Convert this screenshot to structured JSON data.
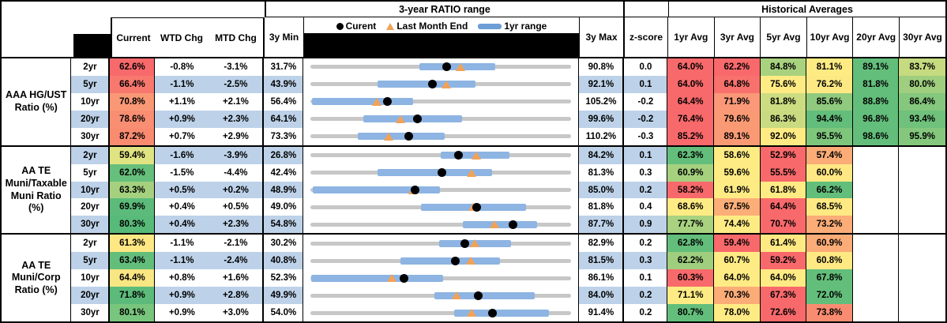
{
  "header": {
    "range_title": "3-year RATIO range",
    "hist_title": "Historical Averages",
    "cols": {
      "current": "Current",
      "wtd": "WTD Chg",
      "mtd": "MTD Chg",
      "min": "3y Min",
      "max": "3y Max",
      "z": "z-score"
    },
    "avg_cols": [
      "1yr Avg",
      "3yr Avg",
      "5yr Avg",
      "10yr Avg",
      "20yr Avg",
      "30yr Avg"
    ],
    "legend": {
      "current": "Curent",
      "last_month": "Last Month End",
      "range": "1yr range"
    }
  },
  "colors": {
    "stripe": "#BDD2E9",
    "bar": "#8DB4E2",
    "track": "#C7C7C7",
    "marker_orange": "#F2A257",
    "heat_red": "#F8696B",
    "heat_yellow": "#FFEB84",
    "heat_green": "#63BE7B"
  },
  "chart_data": {
    "type": "table",
    "note": "range = 3y min/max scale; lo/hi = 1yr range bar; cur = current; lme = last month end",
    "sections": [
      {
        "label": "AAA HG/UST Ratio (%)",
        "rows": [
          {
            "tenor": "2yr",
            "current": "62.6%",
            "current_bg": "#F8696B",
            "wtd": "-0.8%",
            "mtd": "-3.1%",
            "min3y": "31.7%",
            "max3y": "90.8%",
            "z": "0.0",
            "range": {
              "min": 31.7,
              "max": 90.8,
              "lo": 56.3,
              "hi": 73.6,
              "cur": 62.6,
              "lme": 65.7
            },
            "avgs": [
              {
                "v": "64.0%",
                "bg": "#F8696B"
              },
              {
                "v": "62.2%",
                "bg": "#F8696B"
              },
              {
                "v": "84.8%",
                "bg": "#A9D27F"
              },
              {
                "v": "81.1%",
                "bg": "#FFEB84"
              },
              {
                "v": "89.1%",
                "bg": "#63BE7B"
              },
              {
                "v": "83.7%",
                "bg": "#C6DA80"
              }
            ]
          },
          {
            "tenor": "5yr",
            "current": "66.4%",
            "current_bg": "#F8786E",
            "wtd": "-1.1%",
            "mtd": "-2.5%",
            "min3y": "43.9%",
            "max3y": "92.1%",
            "z": "0.1",
            "range": {
              "min": 43.9,
              "max": 92.1,
              "lo": 56.3,
              "hi": 74.3,
              "cur": 66.4,
              "lme": 68.9
            },
            "avgs": [
              {
                "v": "64.0%",
                "bg": "#F8696B"
              },
              {
                "v": "64.8%",
                "bg": "#F8716C"
              },
              {
                "v": "75.6%",
                "bg": "#FFEB84"
              },
              {
                "v": "76.2%",
                "bg": "#FCE983"
              },
              {
                "v": "81.8%",
                "bg": "#63BE7B"
              },
              {
                "v": "80.0%",
                "bg": "#9ECE7E"
              }
            ]
          },
          {
            "tenor": "10yr",
            "current": "70.8%",
            "current_bg": "#FA9876",
            "wtd": "+1.1%",
            "mtd": "+2.1%",
            "min3y": "56.4%",
            "max3y": "105.2%",
            "z": "-0.2",
            "range": {
              "min": 56.4,
              "max": 105.2,
              "lo": 56.7,
              "hi": 75.6,
              "cur": 70.8,
              "lme": 68.7
            },
            "avgs": [
              {
                "v": "64.4%",
                "bg": "#F8696B"
              },
              {
                "v": "71.9%",
                "bg": "#FA9878"
              },
              {
                "v": "81.8%",
                "bg": "#CCDC81"
              },
              {
                "v": "85.6%",
                "bg": "#90CA7E"
              },
              {
                "v": "88.8%",
                "bg": "#63BE7B"
              },
              {
                "v": "86.4%",
                "bg": "#84C77D"
              }
            ]
          },
          {
            "tenor": "20yr",
            "current": "78.6%",
            "current_bg": "#F98E72",
            "wtd": "+0.9%",
            "mtd": "+2.3%",
            "min3y": "64.1%",
            "max3y": "99.6%",
            "z": "-0.2",
            "range": {
              "min": 64.1,
              "max": 99.6,
              "lo": 71.3,
              "hi": 84.7,
              "cur": 78.6,
              "lme": 76.3
            },
            "avgs": [
              {
                "v": "76.4%",
                "bg": "#F8696B"
              },
              {
                "v": "79.6%",
                "bg": "#FA9A74"
              },
              {
                "v": "86.3%",
                "bg": "#C9DB80"
              },
              {
                "v": "94.4%",
                "bg": "#63BE7B"
              },
              {
                "v": "96.8%",
                "bg": "#63BE7B"
              },
              {
                "v": "93.4%",
                "bg": "#6FC17B"
              }
            ]
          },
          {
            "tenor": "30yr",
            "current": "87.2%",
            "current_bg": "#F98B70",
            "wtd": "+0.7%",
            "mtd": "+2.9%",
            "min3y": "73.3%",
            "max3y": "110.2%",
            "z": "-0.3",
            "range": {
              "min": 73.3,
              "max": 110.2,
              "lo": 80.0,
              "hi": 92.3,
              "cur": 87.2,
              "lme": 84.3
            },
            "avgs": [
              {
                "v": "85.2%",
                "bg": "#F8696B"
              },
              {
                "v": "89.1%",
                "bg": "#FA9A74"
              },
              {
                "v": "92.0%",
                "bg": "#FFEB84"
              },
              {
                "v": "95.5%",
                "bg": "#7FC67D"
              },
              {
                "v": "98.6%",
                "bg": "#63BE7B"
              },
              {
                "v": "95.9%",
                "bg": "#85C87D"
              }
            ]
          }
        ]
      },
      {
        "label": "AA TE Muni/Taxable Muni Ratio (%)",
        "rows": [
          {
            "tenor": "2yr",
            "current": "59.4%",
            "current_bg": "#E0E382",
            "wtd": "-1.6%",
            "mtd": "-3.9%",
            "min3y": "26.8%",
            "max3y": "84.2%",
            "z": "0.1",
            "range": {
              "min": 26.8,
              "max": 84.2,
              "lo": 55.5,
              "hi": 70.6,
              "cur": 59.4,
              "lme": 63.3
            },
            "avgs": [
              {
                "v": "62.3%",
                "bg": "#63BE7B"
              },
              {
                "v": "58.6%",
                "bg": "#FFEB84"
              },
              {
                "v": "52.9%",
                "bg": "#F8696B"
              },
              {
                "v": "57.4%",
                "bg": "#FBAC77"
              },
              {
                "v": "",
                "bg": "#FFFFFF"
              },
              {
                "v": "",
                "bg": "#FFFFFF"
              }
            ]
          },
          {
            "tenor": "5yr",
            "current": "62.0%",
            "current_bg": "#66BF7B",
            "wtd": "-1.5%",
            "mtd": "-4.4%",
            "min3y": "42.4%",
            "max3y": "81.3%",
            "z": "0.3",
            "range": {
              "min": 42.4,
              "max": 81.3,
              "lo": 52.4,
              "hi": 69.5,
              "cur": 62.0,
              "lme": 66.4
            },
            "avgs": [
              {
                "v": "60.9%",
                "bg": "#A5D17F"
              },
              {
                "v": "59.6%",
                "bg": "#FFEB84"
              },
              {
                "v": "55.5%",
                "bg": "#F8696B"
              },
              {
                "v": "60.0%",
                "bg": "#FFE883"
              },
              {
                "v": "",
                "bg": "#FFFFFF"
              },
              {
                "v": "",
                "bg": "#FFFFFF"
              }
            ]
          },
          {
            "tenor": "10yr",
            "current": "63.3%",
            "current_bg": "#A5D17F",
            "wtd": "+0.5%",
            "mtd": "+0.2%",
            "min3y": "48.9%",
            "max3y": "85.0%",
            "z": "0.2",
            "range": {
              "min": 48.9,
              "max": 85.0,
              "lo": 49.2,
              "hi": 66.8,
              "cur": 63.3,
              "lme": 63.1
            },
            "avgs": [
              {
                "v": "58.2%",
                "bg": "#F8696B"
              },
              {
                "v": "61.9%",
                "bg": "#FFEB84"
              },
              {
                "v": "61.8%",
                "bg": "#FFEB84"
              },
              {
                "v": "66.2%",
                "bg": "#63BE7B"
              },
              {
                "v": "",
                "bg": "#FFFFFF"
              },
              {
                "v": "",
                "bg": "#FFFFFF"
              }
            ]
          },
          {
            "tenor": "20yr",
            "current": "69.9%",
            "current_bg": "#5CBB7A",
            "wtd": "+0.4%",
            "mtd": "+0.5%",
            "min3y": "49.0%",
            "max3y": "81.8%",
            "z": "0.4",
            "range": {
              "min": 49.0,
              "max": 81.8,
              "lo": 62.9,
              "hi": 76.1,
              "cur": 69.9,
              "lme": 69.4
            },
            "avgs": [
              {
                "v": "68.6%",
                "bg": "#FFEB84"
              },
              {
                "v": "67.5%",
                "bg": "#FBAE77"
              },
              {
                "v": "64.4%",
                "bg": "#F8696B"
              },
              {
                "v": "68.5%",
                "bg": "#FFE983"
              },
              {
                "v": "",
                "bg": "#FFFFFF"
              },
              {
                "v": "",
                "bg": "#FFFFFF"
              }
            ]
          },
          {
            "tenor": "30yr",
            "current": "80.3%",
            "current_bg": "#57BA79",
            "wtd": "+0.4%",
            "mtd": "+2.3%",
            "min3y": "54.8%",
            "max3y": "87.7%",
            "z": "0.9",
            "range": {
              "min": 54.8,
              "max": 87.7,
              "lo": 74.0,
              "hi": 83.4,
              "cur": 80.3,
              "lme": 78.0
            },
            "avgs": [
              {
                "v": "77.7%",
                "bg": "#A8D27F"
              },
              {
                "v": "74.4%",
                "bg": "#FFEB84"
              },
              {
                "v": "70.7%",
                "bg": "#F8696B"
              },
              {
                "v": "73.2%",
                "bg": "#FBAC77"
              },
              {
                "v": "",
                "bg": "#FFFFFF"
              },
              {
                "v": "",
                "bg": "#FFFFFF"
              }
            ]
          }
        ]
      },
      {
        "label": "AA TE Muni/Corp Ratio (%)",
        "rows": [
          {
            "tenor": "2yr",
            "current": "61.3%",
            "current_bg": "#FFE884",
            "wtd": "-1.1%",
            "mtd": "-2.1%",
            "min3y": "30.2%",
            "max3y": "82.9%",
            "z": "0.2",
            "range": {
              "min": 30.2,
              "max": 82.9,
              "lo": 56.2,
              "hi": 70.7,
              "cur": 61.3,
              "lme": 63.4
            },
            "avgs": [
              {
                "v": "62.8%",
                "bg": "#63BE7B"
              },
              {
                "v": "59.4%",
                "bg": "#F8696B"
              },
              {
                "v": "61.4%",
                "bg": "#FFE983"
              },
              {
                "v": "60.9%",
                "bg": "#FBAC77"
              },
              {
                "v": "",
                "bg": "#FFFFFF"
              },
              {
                "v": "",
                "bg": "#FFFFFF"
              }
            ]
          },
          {
            "tenor": "5yr",
            "current": "63.4%",
            "current_bg": "#63BE7B",
            "wtd": "-1.1%",
            "mtd": "-2.4%",
            "min3y": "40.8%",
            "max3y": "81.5%",
            "z": "0.3",
            "range": {
              "min": 40.8,
              "max": 81.5,
              "lo": 54.8,
              "hi": 70.4,
              "cur": 63.4,
              "lme": 65.8
            },
            "avgs": [
              {
                "v": "62.2%",
                "bg": "#9FCF7E"
              },
              {
                "v": "60.7%",
                "bg": "#FFEB84"
              },
              {
                "v": "59.2%",
                "bg": "#F8696B"
              },
              {
                "v": "60.8%",
                "bg": "#FFE983"
              },
              {
                "v": "",
                "bg": "#FFFFFF"
              },
              {
                "v": "",
                "bg": "#FFFFFF"
              }
            ]
          },
          {
            "tenor": "10yr",
            "current": "64.4%",
            "current_bg": "#F8E683",
            "wtd": "+0.8%",
            "mtd": "+1.6%",
            "min3y": "52.3%",
            "max3y": "86.1%",
            "z": "0.1",
            "range": {
              "min": 52.3,
              "max": 86.1,
              "lo": 52.4,
              "hi": 69.5,
              "cur": 64.4,
              "lme": 62.8
            },
            "avgs": [
              {
                "v": "60.3%",
                "bg": "#F8696B"
              },
              {
                "v": "64.0%",
                "bg": "#FFEB84"
              },
              {
                "v": "64.0%",
                "bg": "#FFEB84"
              },
              {
                "v": "67.8%",
                "bg": "#63BE7B"
              },
              {
                "v": "",
                "bg": "#FFFFFF"
              },
              {
                "v": "",
                "bg": "#FFFFFF"
              }
            ]
          },
          {
            "tenor": "20yr",
            "current": "71.8%",
            "current_bg": "#5CBB7A",
            "wtd": "+0.9%",
            "mtd": "+2.8%",
            "min3y": "49.9%",
            "max3y": "84.0%",
            "z": "0.2",
            "range": {
              "min": 49.9,
              "max": 84.0,
              "lo": 66.1,
              "hi": 79.2,
              "cur": 71.8,
              "lme": 69.0
            },
            "avgs": [
              {
                "v": "71.1%",
                "bg": "#FFEB84"
              },
              {
                "v": "70.3%",
                "bg": "#FBAC77"
              },
              {
                "v": "67.3%",
                "bg": "#F8696B"
              },
              {
                "v": "72.0%",
                "bg": "#63BE7B"
              },
              {
                "v": "",
                "bg": "#FFFFFF"
              },
              {
                "v": "",
                "bg": "#FFFFFF"
              }
            ]
          },
          {
            "tenor": "30yr",
            "current": "80.1%",
            "current_bg": "#78C57D",
            "wtd": "+0.9%",
            "mtd": "+3.0%",
            "min3y": "54.0%",
            "max3y": "91.4%",
            "z": "0.2",
            "range": {
              "min": 54.0,
              "max": 91.4,
              "lo": 74.6,
              "hi": 88.2,
              "cur": 80.1,
              "lme": 77.1
            },
            "avgs": [
              {
                "v": "80.7%",
                "bg": "#63BE7B"
              },
              {
                "v": "78.0%",
                "bg": "#FFEB84"
              },
              {
                "v": "72.6%",
                "bg": "#F8696B"
              },
              {
                "v": "73.8%",
                "bg": "#F98C70"
              },
              {
                "v": "",
                "bg": "#FFFFFF"
              },
              {
                "v": "",
                "bg": "#FFFFFF"
              }
            ]
          }
        ]
      }
    ]
  }
}
